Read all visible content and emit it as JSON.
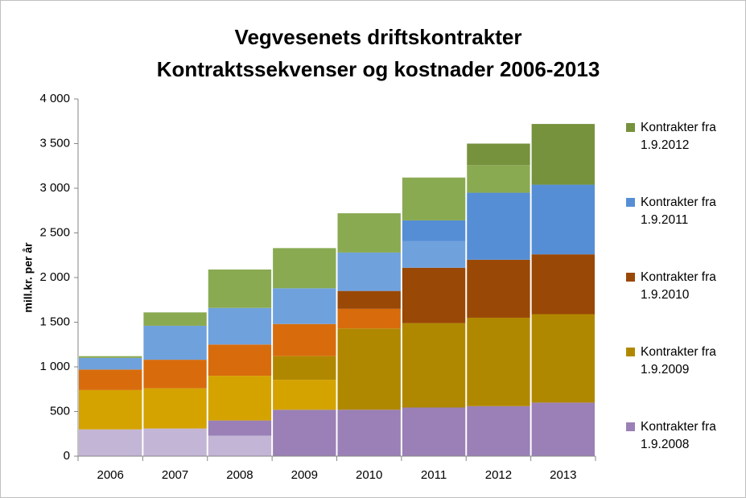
{
  "chart_data": {
    "type": "bar",
    "stacked": true,
    "title": [
      "Vegvesenets driftskontrakter",
      "Kontraktssekvenser og kostnader 2006-2013"
    ],
    "y_label": "mill.kr. per år",
    "categories": [
      "2006",
      "2007",
      "2008",
      "2009",
      "2010",
      "2011",
      "2012",
      "2013"
    ],
    "ylim": [
      0,
      4000
    ],
    "yticks": [
      0,
      500,
      {
        "value": 1000,
        "label": "1 000"
      },
      {
        "value": 1500,
        "label": "1 500"
      },
      {
        "value": 2000,
        "label": "2 000"
      },
      {
        "value": 2500,
        "label": "2 500"
      },
      {
        "value": 3000,
        "label": "3 000"
      },
      {
        "value": 3500,
        "label": "3 500"
      },
      {
        "value": 4000,
        "label": "4 000"
      }
    ],
    "series": [
      {
        "color": "#c3b5d6",
        "values": [
          300,
          310,
          230,
          0,
          0,
          0,
          0,
          0
        ]
      },
      {
        "name": "Kontrakter fra 1.9.2008",
        "color": "#9a80b6",
        "values": [
          0,
          0,
          170,
          520,
          520,
          545,
          560,
          600
        ]
      },
      {
        "color": "#d4a300",
        "values": [
          440,
          450,
          500,
          335,
          0,
          0,
          0,
          0
        ]
      },
      {
        "name": "Kontrakter fra 1.9.2009",
        "color": "#b08800",
        "values": [
          0,
          0,
          0,
          265,
          910,
          945,
          990,
          990
        ]
      },
      {
        "color": "#d86c0c",
        "values": [
          230,
          320,
          350,
          360,
          220,
          0,
          0,
          0
        ]
      },
      {
        "name": "Kontrakter fra 1.9.2010",
        "color": "#9a4806",
        "values": [
          0,
          0,
          0,
          0,
          200,
          620,
          650,
          670
        ]
      },
      {
        "color": "#6fa1dd",
        "values": [
          130,
          380,
          410,
          400,
          430,
          300,
          0,
          0
        ]
      },
      {
        "name": "Kontrakter fra 1.9.2011",
        "color": "#558ed5",
        "values": [
          0,
          0,
          0,
          0,
          0,
          230,
          750,
          780
        ]
      },
      {
        "color": "#8aaa52",
        "values": [
          20,
          150,
          430,
          450,
          440,
          480,
          310,
          0
        ]
      },
      {
        "name": "Kontrakter fra 1.9.2012",
        "color": "#76923c",
        "values": [
          0,
          0,
          0,
          0,
          0,
          0,
          240,
          680
        ]
      }
    ]
  }
}
